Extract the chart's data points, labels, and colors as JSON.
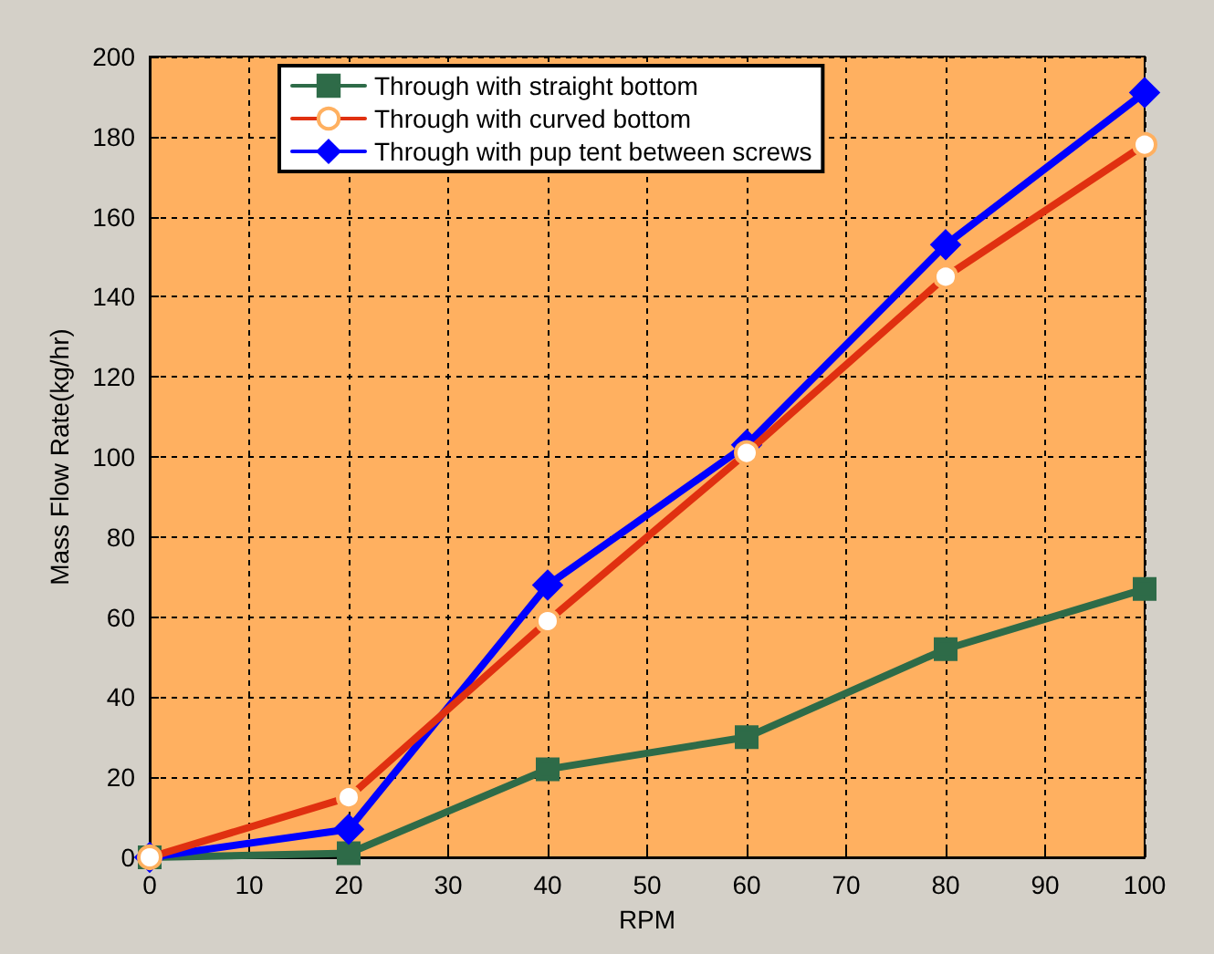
{
  "chart_data": {
    "type": "line",
    "xlabel": "RPM",
    "ylabel": "Mass Flow Rate(kg/hr)",
    "x": [
      0,
      20,
      40,
      60,
      80,
      100
    ],
    "series": [
      {
        "name": "Through with straight bottom",
        "color": "#2e6b48",
        "marker": "square",
        "values": [
          0,
          1,
          22,
          30,
          52,
          67
        ]
      },
      {
        "name": "Through with curved bottom",
        "color": "#e03010",
        "marker": "circle",
        "values": [
          0,
          15,
          59,
          101,
          145,
          178
        ]
      },
      {
        "name": "Through with pup tent between screws",
        "color": "#0000ff",
        "marker": "diamond",
        "values": [
          0,
          7,
          68,
          103,
          153,
          191
        ]
      }
    ],
    "xlim": [
      0,
      100
    ],
    "xticks": [
      0,
      10,
      20,
      30,
      40,
      50,
      60,
      70,
      80,
      90,
      100
    ],
    "ylim": [
      0,
      200
    ],
    "yticks": [
      0,
      20,
      40,
      60,
      80,
      100,
      120,
      140,
      160,
      180,
      200
    ],
    "grid": true,
    "legend": "top",
    "line_style": "solid"
  }
}
